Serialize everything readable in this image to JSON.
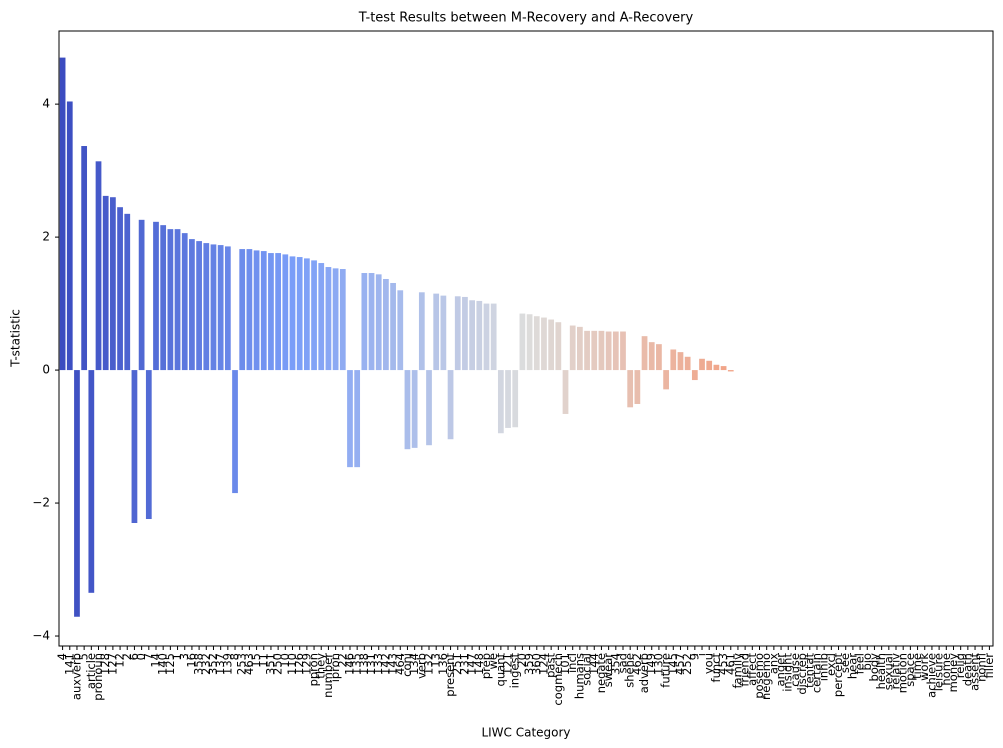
{
  "chart_data": {
    "type": "bar",
    "title": "T-test Results between M-Recovery and A-Recovery",
    "xlabel": "LIWC Category",
    "ylabel": "T-statistic",
    "palette": "coolwarm",
    "categories": [
      "4",
      "141",
      "auxverb",
      "5",
      "article",
      "pronoun",
      "128",
      "127",
      "12",
      "2",
      "6",
      "0",
      "7",
      "14",
      "140",
      "125",
      "1",
      "3",
      "16",
      "358",
      "232",
      "352",
      "137",
      "139",
      "8",
      "253",
      "463",
      "15",
      "11",
      "351",
      "250",
      "10",
      "110",
      "126",
      "129",
      "ppron",
      "they",
      "number",
      "ipron",
      "22",
      "146",
      "135",
      "138",
      "131",
      "133",
      "142",
      "143",
      "464",
      "conj",
      "134",
      "verb",
      "132",
      "13",
      "136",
      "present",
      "251",
      "231",
      "147",
      "148",
      "prep",
      "we",
      "quant",
      "121",
      "ingest",
      "20",
      "359",
      "360",
      "124",
      "past",
      "cogmech",
      "101",
      "incl",
      "humans",
      "social",
      "144",
      "negate",
      "swear",
      "354",
      "sad",
      "shehe",
      "462",
      "adverb",
      "149",
      "130",
      "future",
      "145",
      "457",
      "252",
      "9",
      "i",
      "you",
      "funct",
      "453",
      "461",
      "family",
      "friend",
      "affect",
      "posemo",
      "negemo",
      "anx",
      "anger",
      "insight",
      "cause",
      "discrep",
      "tentat",
      "certain",
      "inhib",
      "excl",
      "percept",
      "see",
      "hear",
      "feel",
      "bio",
      "body",
      "health",
      "sexual",
      "relativ",
      "motion",
      "space",
      "time",
      "work",
      "achieve",
      "leisure",
      "home",
      "money",
      "relig",
      "death",
      "assent",
      "nonfl",
      "filler"
    ],
    "values": [
      4.7,
      4.04,
      -3.71,
      3.37,
      -3.35,
      3.14,
      2.62,
      2.6,
      2.45,
      2.35,
      -2.3,
      2.26,
      -2.24,
      2.23,
      2.18,
      2.12,
      2.12,
      2.06,
      1.97,
      1.94,
      1.91,
      1.89,
      1.88,
      1.86,
      -1.85,
      1.82,
      1.82,
      1.8,
      1.79,
      1.76,
      1.76,
      1.74,
      1.71,
      1.7,
      1.68,
      1.65,
      1.61,
      1.55,
      1.53,
      1.52,
      -1.46,
      -1.46,
      1.46,
      1.46,
      1.44,
      1.37,
      1.31,
      1.2,
      -1.19,
      -1.17,
      1.17,
      -1.13,
      1.15,
      1.12,
      -1.04,
      1.11,
      1.1,
      1.05,
      1.04,
      1.0,
      1.0,
      -0.95,
      -0.87,
      -0.86,
      0.85,
      0.84,
      0.81,
      0.79,
      0.76,
      0.72,
      -0.66,
      0.67,
      0.65,
      0.59,
      0.59,
      0.59,
      0.58,
      0.58,
      0.58,
      -0.56,
      -0.51,
      0.51,
      0.42,
      0.39,
      -0.29,
      0.31,
      0.27,
      0.2,
      -0.15,
      0.17,
      0.14,
      0.08,
      0.06,
      -0.02,
      null,
      null,
      null,
      null,
      null,
      null,
      null,
      null,
      null,
      null,
      null,
      null,
      null,
      null,
      null,
      null,
      null,
      null,
      null,
      null,
      null,
      null,
      null,
      null,
      null,
      null,
      null,
      null,
      null,
      null,
      null,
      null,
      null,
      null,
      null,
      null
    ],
    "ylim": [
      -4.15,
      5.1
    ],
    "yticks": [
      {
        "value": -4,
        "label": "−4"
      },
      {
        "value": -2,
        "label": "−2"
      },
      0,
      2,
      4
    ],
    "grid": false
  }
}
